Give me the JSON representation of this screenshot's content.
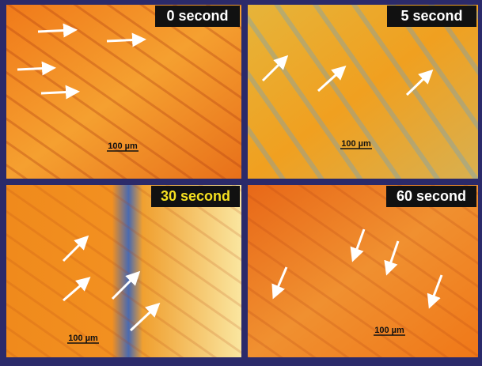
{
  "panels": [
    {
      "label": "0 second",
      "scale_bar": "100 µm"
    },
    {
      "label": "5 second",
      "scale_bar": "100 µm"
    },
    {
      "label": "30 second",
      "scale_bar": "100 µm"
    },
    {
      "label": "60 second",
      "scale_bar": "100 µm"
    }
  ]
}
